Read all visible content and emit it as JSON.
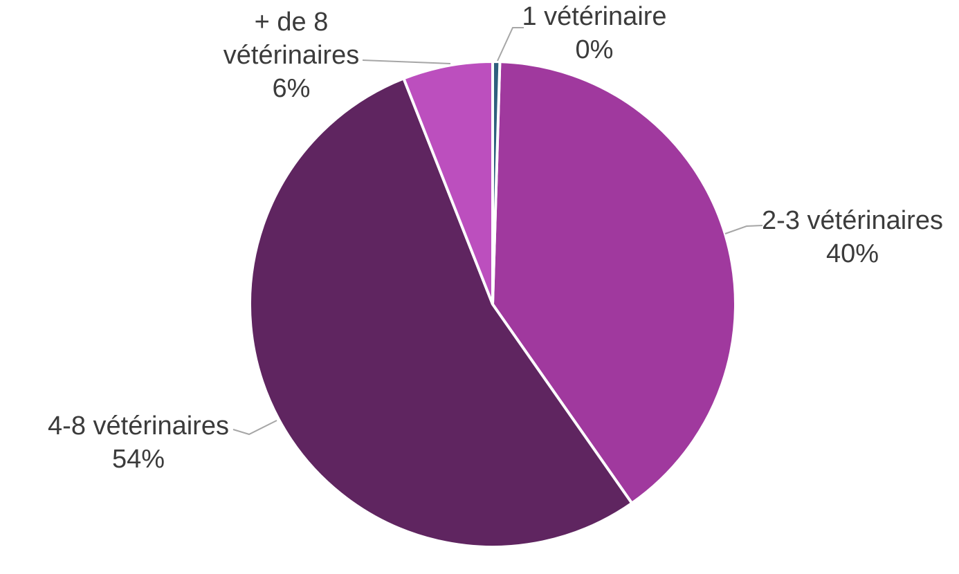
{
  "chart_data": {
    "type": "pie",
    "title": "",
    "unit": "%",
    "slices": [
      {
        "label": "1 vétérinaire",
        "value": 0,
        "pct_label": "0%",
        "color": "#2F5F7E"
      },
      {
        "label": "2-3 vétérinaires",
        "value": 40,
        "pct_label": "40%",
        "color": "#A0399E"
      },
      {
        "label": "4-8 vétérinaires",
        "value": 54,
        "pct_label": "54%",
        "color": "#5F2560"
      },
      {
        "label": "+ de 8 vétérinaires",
        "value": 6,
        "pct_label": "6%",
        "color": "#BC4FBE"
      }
    ],
    "start_angle_deg": 0,
    "direction": "clockwise",
    "labels_position": "outside",
    "leader_lines": true,
    "legend": "none",
    "background": "#FFFFFF",
    "slice_border_color": "#FFFFFF",
    "leader_line_color": "#A6A6A6",
    "label_text_color": "#3B3B3B"
  }
}
